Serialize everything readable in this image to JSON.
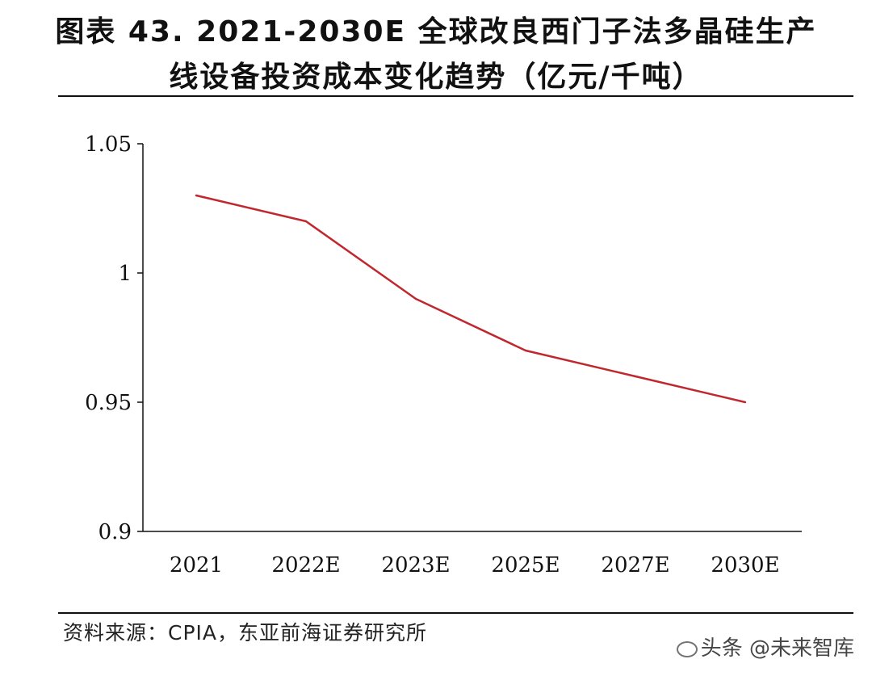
{
  "title": {
    "line1": "图表 43. 2021-2030E 全球改良西门子法多晶硅生产",
    "line2": "线设备投资成本变化趋势（亿元/千吨）"
  },
  "source": "资料来源：CPIA，东亚前海证券研究所",
  "watermark": "头条 @未来智库",
  "colors": {
    "line": "#c0282f",
    "axis": "#111111"
  },
  "chart_data": {
    "type": "line",
    "categories": [
      "2021",
      "2022E",
      "2023E",
      "2025E",
      "2027E",
      "2030E"
    ],
    "series": [
      {
        "values": [
          1.03,
          1.02,
          0.99,
          0.97,
          0.96,
          0.95
        ]
      }
    ],
    "yticks": [
      "1.05",
      "1",
      "0.95",
      "0.9"
    ],
    "ylim": [
      0.9,
      1.05
    ],
    "grid": false,
    "legend": "none"
  }
}
